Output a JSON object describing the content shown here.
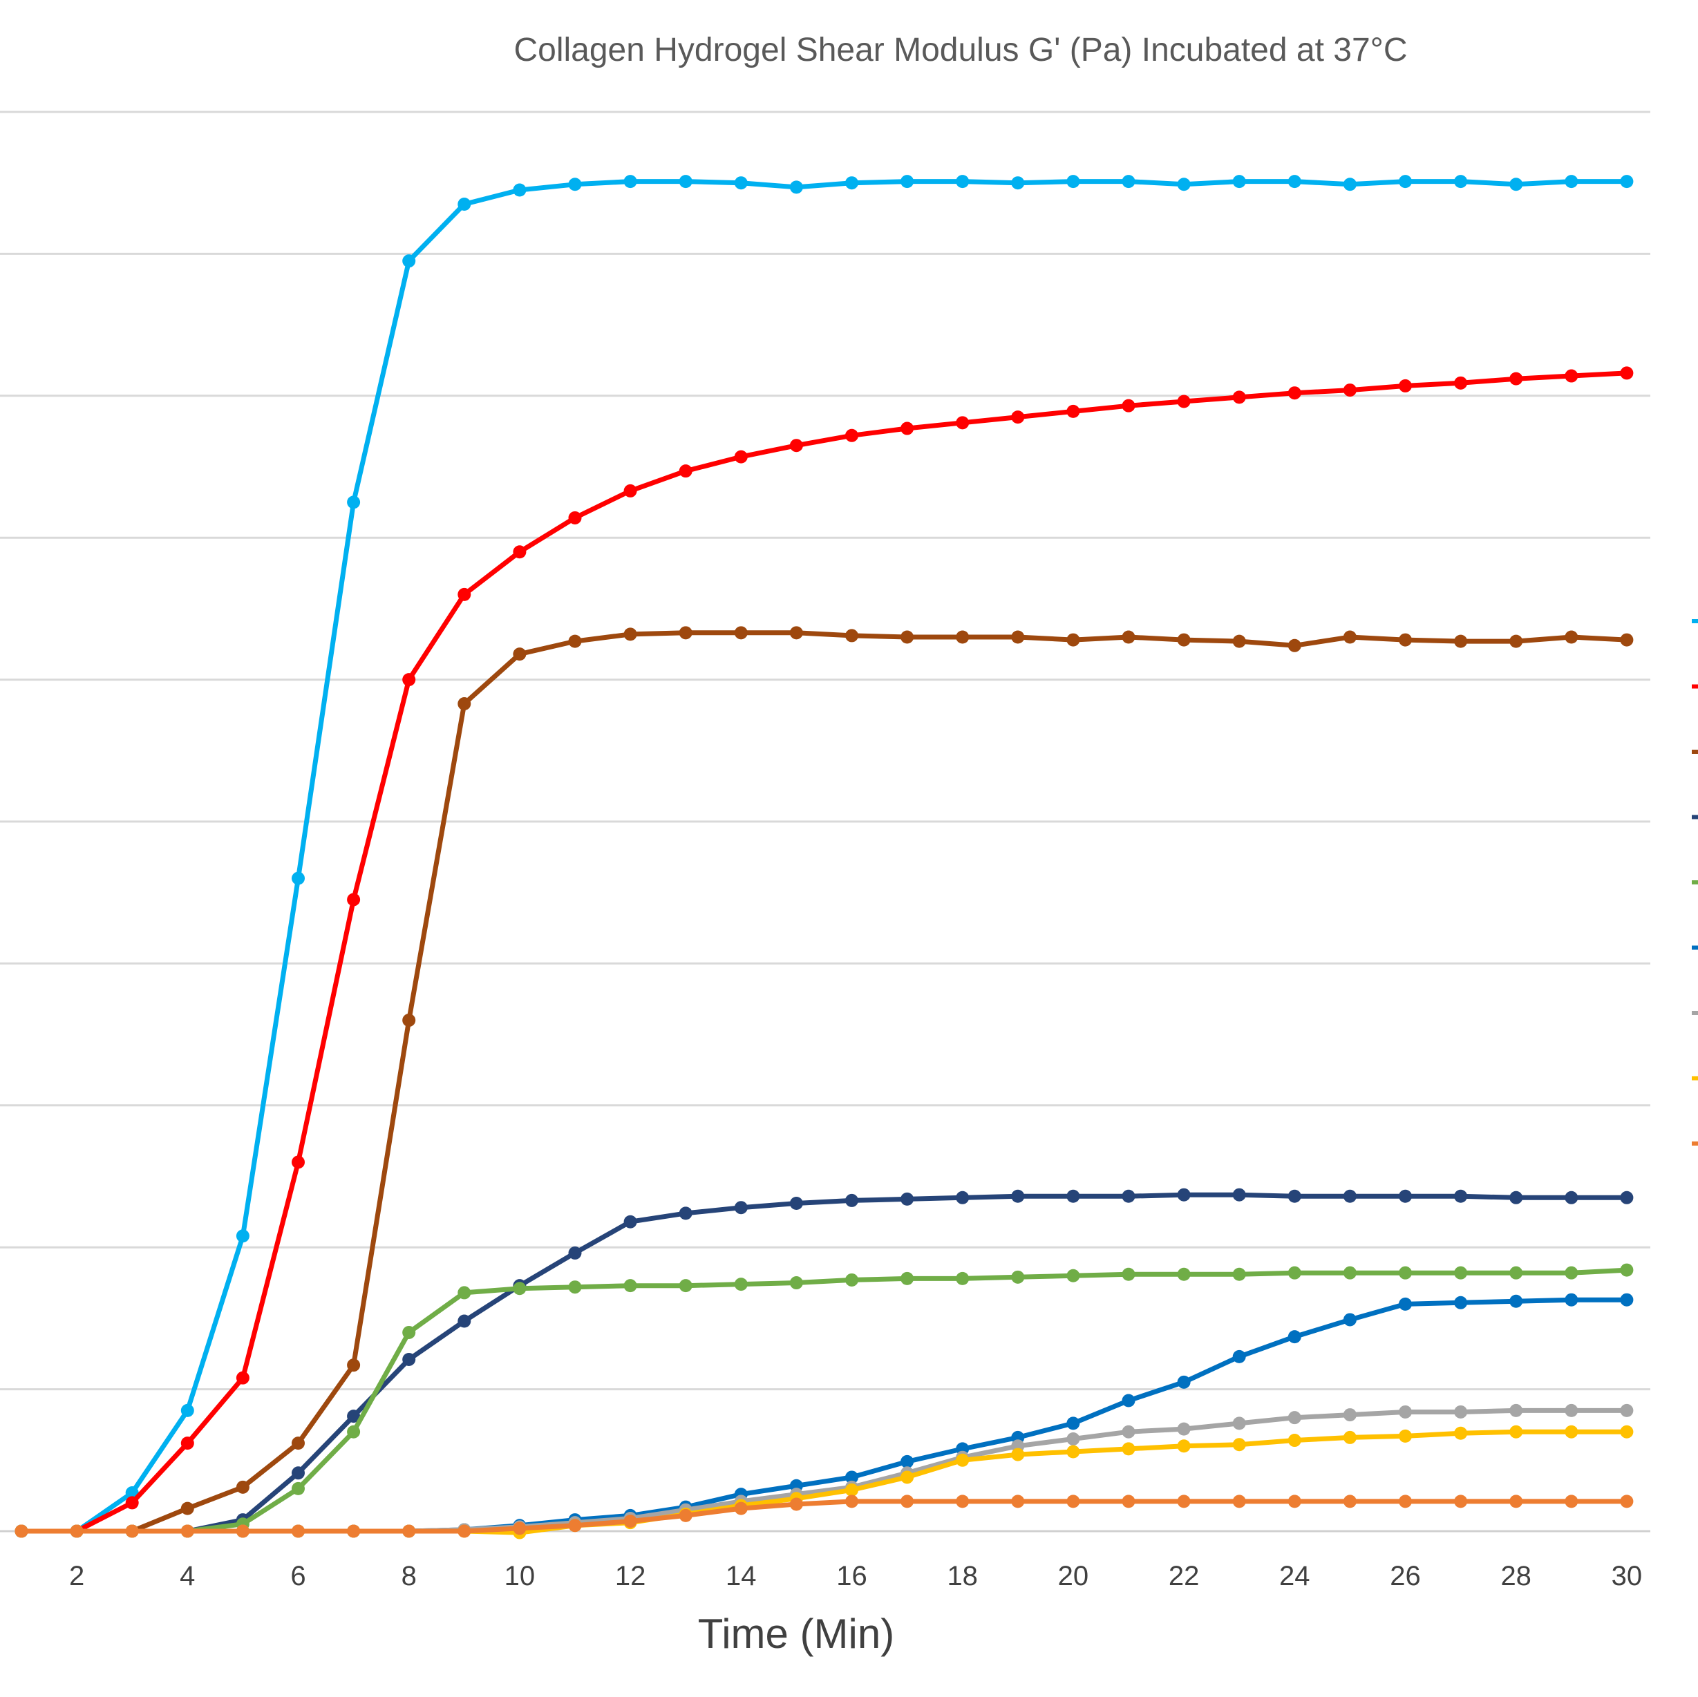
{
  "chart_data": {
    "type": "line",
    "title": "Collagen Hydrogel Shear Modulus G' (Pa) Incubated at 37°C",
    "xlabel": "Time (Min)",
    "ylabel": "",
    "x": [
      1,
      2,
      3,
      4,
      5,
      6,
      7,
      8,
      9,
      10,
      11,
      12,
      13,
      14,
      15,
      16,
      17,
      18,
      19,
      20,
      21,
      22,
      23,
      24,
      25,
      26,
      27,
      28,
      29,
      30
    ],
    "x_tick_labels": [
      2,
      4,
      6,
      8,
      10,
      12,
      14,
      16,
      18,
      20,
      22,
      24,
      26,
      28,
      30
    ],
    "xlim": [
      0.6,
      30.3
    ],
    "ylim": [
      0,
      10
    ],
    "y_gridlines": [
      0,
      1,
      2,
      3,
      4,
      5,
      6,
      7,
      8,
      9,
      10
    ],
    "grid": true,
    "legend": "right",
    "series": [
      {
        "color": "#00b0f0",
        "values": [
          0,
          0,
          0.27,
          0.85,
          2.08,
          4.6,
          7.25,
          8.95,
          9.35,
          9.45,
          9.49,
          9.51,
          9.51,
          9.5,
          9.47,
          9.5,
          9.51,
          9.51,
          9.5,
          9.51,
          9.51,
          9.49,
          9.51,
          9.51,
          9.49,
          9.51,
          9.51,
          9.49,
          9.51,
          9.51
        ]
      },
      {
        "color": "#ff0000",
        "values": [
          0,
          0,
          0.2,
          0.62,
          1.08,
          2.6,
          4.45,
          6.0,
          6.6,
          6.9,
          7.14,
          7.33,
          7.47,
          7.57,
          7.65,
          7.72,
          7.77,
          7.81,
          7.85,
          7.89,
          7.93,
          7.96,
          7.99,
          8.02,
          8.04,
          8.07,
          8.09,
          8.12,
          8.14,
          8.16
        ]
      },
      {
        "color": "#9e480e",
        "values": [
          0,
          0,
          0,
          0.16,
          0.31,
          0.62,
          1.17,
          3.6,
          5.83,
          6.18,
          6.27,
          6.32,
          6.33,
          6.33,
          6.33,
          6.31,
          6.3,
          6.3,
          6.3,
          6.28,
          6.3,
          6.28,
          6.27,
          6.24,
          6.3,
          6.28,
          6.27,
          6.27,
          6.3,
          6.28
        ]
      },
      {
        "color": "#264478",
        "values": [
          0,
          0,
          0,
          0,
          0.08,
          0.41,
          0.81,
          1.21,
          1.48,
          1.73,
          1.96,
          2.18,
          2.24,
          2.28,
          2.31,
          2.33,
          2.34,
          2.35,
          2.36,
          2.36,
          2.36,
          2.37,
          2.37,
          2.36,
          2.36,
          2.36,
          2.36,
          2.35,
          2.35,
          2.35
        ]
      },
      {
        "color": "#70ad47",
        "values": [
          0,
          0,
          0,
          0,
          0.05,
          0.3,
          0.7,
          1.4,
          1.68,
          1.71,
          1.72,
          1.73,
          1.73,
          1.74,
          1.75,
          1.77,
          1.78,
          1.78,
          1.79,
          1.8,
          1.81,
          1.81,
          1.81,
          1.82,
          1.82,
          1.82,
          1.82,
          1.82,
          1.82,
          1.84
        ]
      },
      {
        "color": "#0070c0",
        "values": [
          0,
          0,
          0,
          0,
          0,
          0,
          0,
          0,
          0.01,
          0.04,
          0.08,
          0.11,
          0.17,
          0.26,
          0.32,
          0.38,
          0.49,
          0.58,
          0.66,
          0.76,
          0.92,
          1.05,
          1.23,
          1.37,
          1.49,
          1.6,
          1.61,
          1.62,
          1.63,
          1.63
        ]
      },
      {
        "color": "#a5a5a5",
        "values": [
          0,
          0,
          0,
          0,
          0,
          0,
          0,
          0,
          0.01,
          0.03,
          0.06,
          0.09,
          0.15,
          0.21,
          0.26,
          0.31,
          0.41,
          0.52,
          0.6,
          0.65,
          0.7,
          0.72,
          0.76,
          0.8,
          0.82,
          0.84,
          0.84,
          0.85,
          0.85,
          0.85
        ]
      },
      {
        "color": "#ffc000",
        "values": [
          0,
          0,
          0,
          0,
          0,
          0,
          0,
          0,
          0,
          -0.01,
          0.04,
          0.06,
          0.12,
          0.18,
          0.23,
          0.29,
          0.38,
          0.5,
          0.54,
          0.56,
          0.58,
          0.6,
          0.61,
          0.64,
          0.66,
          0.67,
          0.69,
          0.7,
          0.7,
          0.7
        ]
      },
      {
        "color": "#ed7d31",
        "values": [
          0,
          0,
          0,
          0,
          0,
          0,
          0,
          0,
          0,
          0.02,
          0.04,
          0.07,
          0.11,
          0.16,
          0.19,
          0.21,
          0.21,
          0.21,
          0.21,
          0.21,
          0.21,
          0.21,
          0.21,
          0.21,
          0.21,
          0.21,
          0.21,
          0.21,
          0.21,
          0.21
        ]
      }
    ]
  }
}
